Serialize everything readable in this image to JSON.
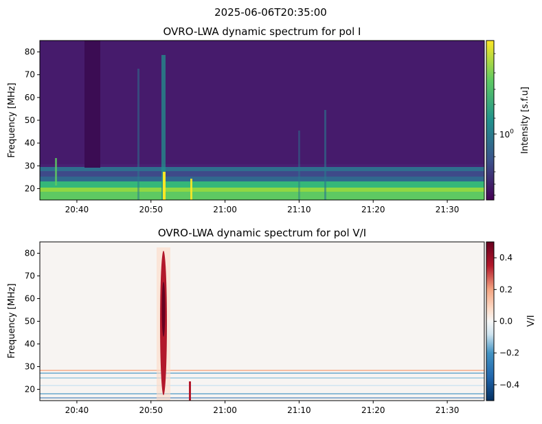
{
  "figure": {
    "suptitle": "2025-06-06T20:35:00"
  },
  "chart_data": [
    {
      "type": "heatmap",
      "title": "OVRO-LWA dynamic spectrum for pol I",
      "xlabel": "",
      "ylabel": "Frequency [MHz]",
      "x_start": "20:35",
      "x_end": "21:35",
      "xlim_minutes_after_2035": [
        0,
        60
      ],
      "xticks": [
        {
          "label": "20:40",
          "min": 5
        },
        {
          "label": "20:50",
          "min": 15
        },
        {
          "label": "21:00",
          "min": 25
        },
        {
          "label": "21:10",
          "min": 35
        },
        {
          "label": "21:20",
          "min": 45
        },
        {
          "label": "21:30",
          "min": 55
        }
      ],
      "ylim": [
        15,
        85
      ],
      "yticks": [
        20,
        30,
        40,
        50,
        60,
        70,
        80
      ],
      "colormap": "viridis",
      "colorbar": {
        "label": "Intensity [s.f.u]",
        "scale": "log",
        "tick_label_base": "10",
        "tick_label_exp": "0"
      }
    },
    {
      "type": "heatmap",
      "title": "OVRO-LWA dynamic spectrum for pol V/I",
      "xlabel": "",
      "ylabel": "Frequency [MHz]",
      "xlim_minutes_after_2035": [
        0,
        60
      ],
      "xticks": [
        {
          "label": "20:40",
          "min": 5
        },
        {
          "label": "20:50",
          "min": 15
        },
        {
          "label": "21:00",
          "min": 25
        },
        {
          "label": "21:10",
          "min": 35
        },
        {
          "label": "21:20",
          "min": 45
        },
        {
          "label": "21:30",
          "min": 55
        }
      ],
      "ylim": [
        15,
        85
      ],
      "yticks": [
        20,
        30,
        40,
        50,
        60,
        70,
        80
      ],
      "colormap": "RdBu_r",
      "colorbar": {
        "label": "V/I",
        "scale": "linear",
        "range": [
          -0.5,
          0.5
        ],
        "ticks": [
          {
            "v": 0.4,
            "label": "0.4"
          },
          {
            "v": 0.2,
            "label": "0.2"
          },
          {
            "v": 0.0,
            "label": "0.0"
          },
          {
            "v": -0.2,
            "label": "−0.2"
          },
          {
            "v": -0.4,
            "label": "−0.4"
          }
        ]
      }
    }
  ]
}
